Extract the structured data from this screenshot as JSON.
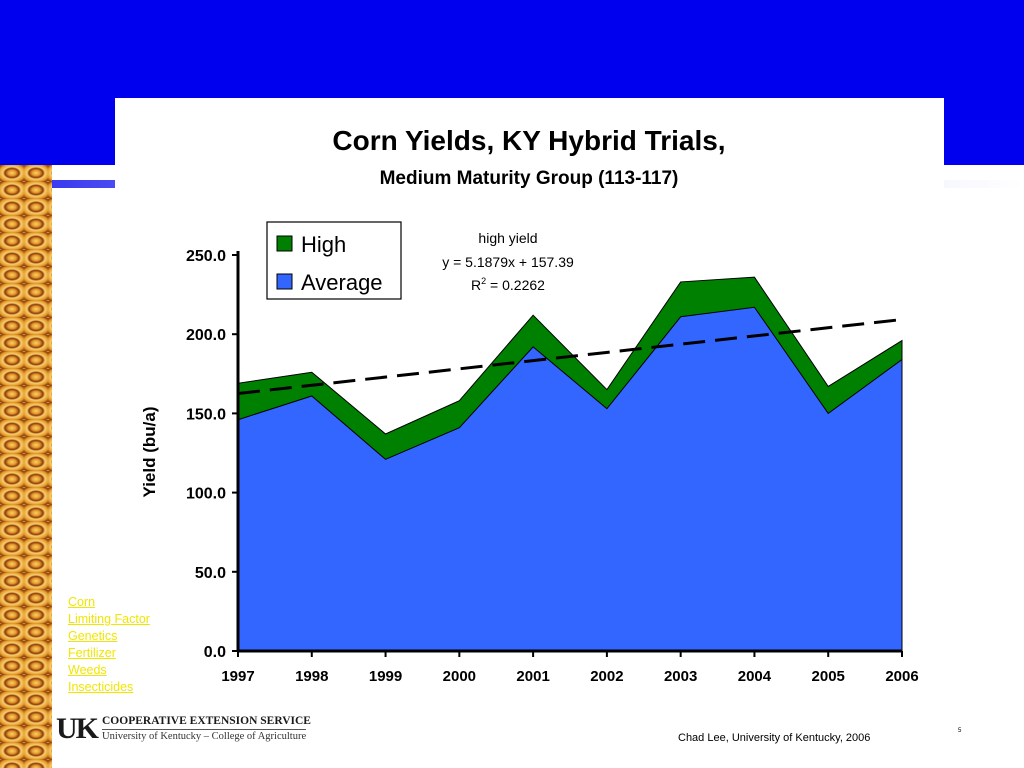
{
  "chart_data": {
    "type": "area",
    "title": "Corn Yields, KY Hybrid Trials,",
    "subtitle": "Medium Maturity Group (113-117)",
    "ylabel": "Yield (bu/a)",
    "xlabel": "",
    "ylim": [
      0,
      250
    ],
    "yticks": [
      "0.0",
      "50.0",
      "100.0",
      "150.0",
      "200.0",
      "250.0"
    ],
    "categories": [
      "1997",
      "1998",
      "1999",
      "2000",
      "2001",
      "2002",
      "2003",
      "2004",
      "2005",
      "2006"
    ],
    "series": [
      {
        "name": "High",
        "color": "#008000",
        "values": [
          169,
          176,
          137,
          158,
          212,
          165,
          233,
          236,
          167,
          196
        ]
      },
      {
        "name": "Average",
        "color": "#3366ff",
        "values": [
          146,
          161,
          121,
          141,
          192,
          153,
          211,
          217,
          150,
          184
        ]
      }
    ],
    "trendline": {
      "label": "high yield",
      "equation": "y = 5.1879x + 157.39",
      "r2_prefix": "R",
      "r2_sup": "2",
      "r2_value": " = 0.2262",
      "start": 162.57,
      "end": 209.27
    },
    "legend": "top-left",
    "grid": false
  },
  "nav": [
    "Corn",
    "Limiting Factor",
    "Genetics",
    "Fertilizer",
    "Weeds",
    "Insecticides"
  ],
  "footer": {
    "logo": "UK",
    "org_line1": "COOPERATIVE EXTENSION SERVICE",
    "org_line2": "University of Kentucky – College of Agriculture",
    "credit": "Chad Lee, University of Kentucky, 2006",
    "slide_number": "5"
  }
}
